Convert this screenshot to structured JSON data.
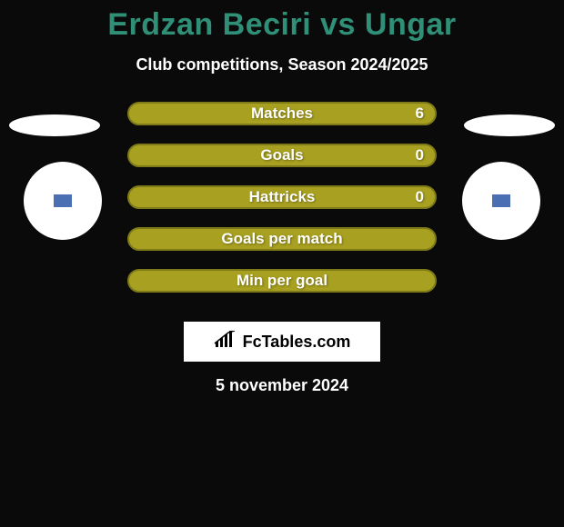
{
  "background_color": "#0a0a0a",
  "title": {
    "text": "Erdzan Beciri vs Ungar",
    "color": "#2f8f77",
    "fontsize": 34
  },
  "subtitle": {
    "text": "Club competitions, Season 2024/2025",
    "color": "#ffffff",
    "fontsize": 18
  },
  "shapes": {
    "ellipse_color": "#ffffff",
    "circle_fill": "#ffffff",
    "inner_box_border": "#4a6fb3",
    "inner_box_fill": "#4a6fb3"
  },
  "rows": [
    {
      "label": "Matches",
      "value_right": "6",
      "fill": "#a8a020",
      "border": "#7f7a18",
      "text": "#ffffff",
      "show_right": true
    },
    {
      "label": "Goals",
      "value_right": "0",
      "fill": "#a8a020",
      "border": "#7f7a18",
      "text": "#ffffff",
      "show_right": true
    },
    {
      "label": "Hattricks",
      "value_right": "0",
      "fill": "#a8a020",
      "border": "#7f7a18",
      "text": "#ffffff",
      "show_right": true
    },
    {
      "label": "Goals per match",
      "value_right": "",
      "fill": "#a8a020",
      "border": "#7f7a18",
      "text": "#ffffff",
      "show_right": false
    },
    {
      "label": "Min per goal",
      "value_right": "",
      "fill": "#a8a020",
      "border": "#7f7a18",
      "text": "#ffffff",
      "show_right": false
    }
  ],
  "logo": {
    "brand_text": "FcTables.com",
    "icon_color": "#000000",
    "bg": "#ffffff"
  },
  "date": {
    "text": "5 november 2024",
    "color": "#ffffff"
  }
}
